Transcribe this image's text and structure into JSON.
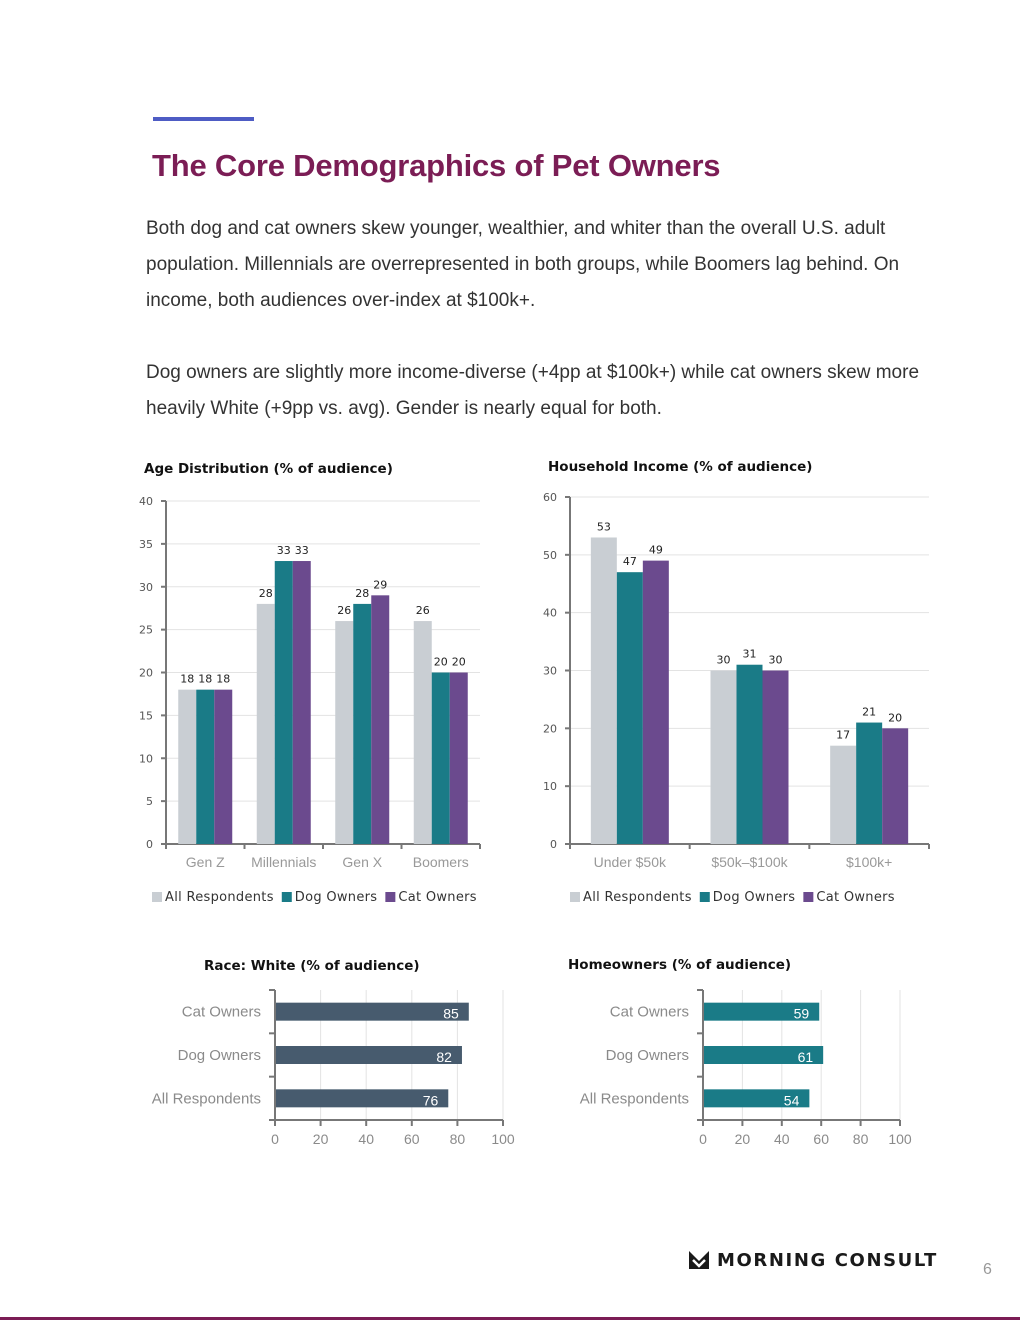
{
  "page": {
    "title": "The Core Demographics of Pet Owners",
    "paragraphs": [
      "Both dog and cat owners skew younger, wealthier, and whiter than the overall U.S. adult population. Millennials are overrepresented in both groups, while Boomers lag behind. On income, both audiences over-index at $100k+.",
      "Dog owners are slightly more income-diverse (+4pp at $100k+) while cat owners skew more heavily White (+9pp vs. avg). Gender is nearly equal for both."
    ],
    "page_number": "6"
  },
  "brand": {
    "name": "MORNING CONSULT",
    "icon": "morning-consult-logo-icon"
  },
  "colors": {
    "all": "#c9ced3",
    "dog": "#1a7b87",
    "cat": "#6b4a8e",
    "race_bar": "#475b6e",
    "home_bar": "#1a7b87",
    "title": "#7b1d55",
    "accent": "#4e5cc4"
  },
  "chart_data": [
    {
      "id": "age",
      "type": "bar",
      "title": "Age Distribution (% of audience)",
      "categories": [
        "Gen Z",
        "Millennials",
        "Gen X",
        "Boomers"
      ],
      "series": [
        {
          "name": "All Respondents",
          "values": [
            18,
            28,
            26,
            26
          ]
        },
        {
          "name": "Dog Owners",
          "values": [
            18,
            33,
            28,
            20
          ]
        },
        {
          "name": "Cat Owners",
          "values": [
            18,
            33,
            29,
            20
          ]
        }
      ],
      "ylim": [
        0,
        40
      ],
      "yticks": [
        0,
        5,
        10,
        15,
        20,
        25,
        30,
        35,
        40
      ],
      "legend": "bottom",
      "grid": true
    },
    {
      "id": "income",
      "type": "bar",
      "title": "Household Income (% of audience)",
      "categories": [
        "Under $50k",
        "$50k–$100k",
        "$100k+"
      ],
      "series": [
        {
          "name": "All Respondents",
          "values": [
            53,
            30,
            17
          ]
        },
        {
          "name": "Dog Owners",
          "values": [
            47,
            31,
            21
          ]
        },
        {
          "name": "Cat Owners",
          "values": [
            49,
            30,
            20
          ]
        }
      ],
      "ylim": [
        0,
        60
      ],
      "yticks": [
        0,
        10,
        20,
        30,
        40,
        50,
        60
      ],
      "legend": "bottom",
      "grid": true
    },
    {
      "id": "race",
      "type": "bar",
      "orientation": "horizontal",
      "title": "Race: White (% of audience)",
      "categories": [
        "Cat Owners",
        "Dog Owners",
        "All Respondents"
      ],
      "values": [
        85,
        82,
        76
      ],
      "xlim": [
        0,
        100
      ],
      "xticks": [
        0,
        20,
        40,
        60,
        80,
        100
      ],
      "grid": true
    },
    {
      "id": "homeowners",
      "type": "bar",
      "orientation": "horizontal",
      "title": "Homeowners (% of audience)",
      "categories": [
        "Cat Owners",
        "Dog Owners",
        "All Respondents"
      ],
      "values": [
        59,
        61,
        54
      ],
      "xlim": [
        0,
        100
      ],
      "xticks": [
        0,
        20,
        40,
        60,
        80,
        100
      ],
      "grid": true
    }
  ]
}
